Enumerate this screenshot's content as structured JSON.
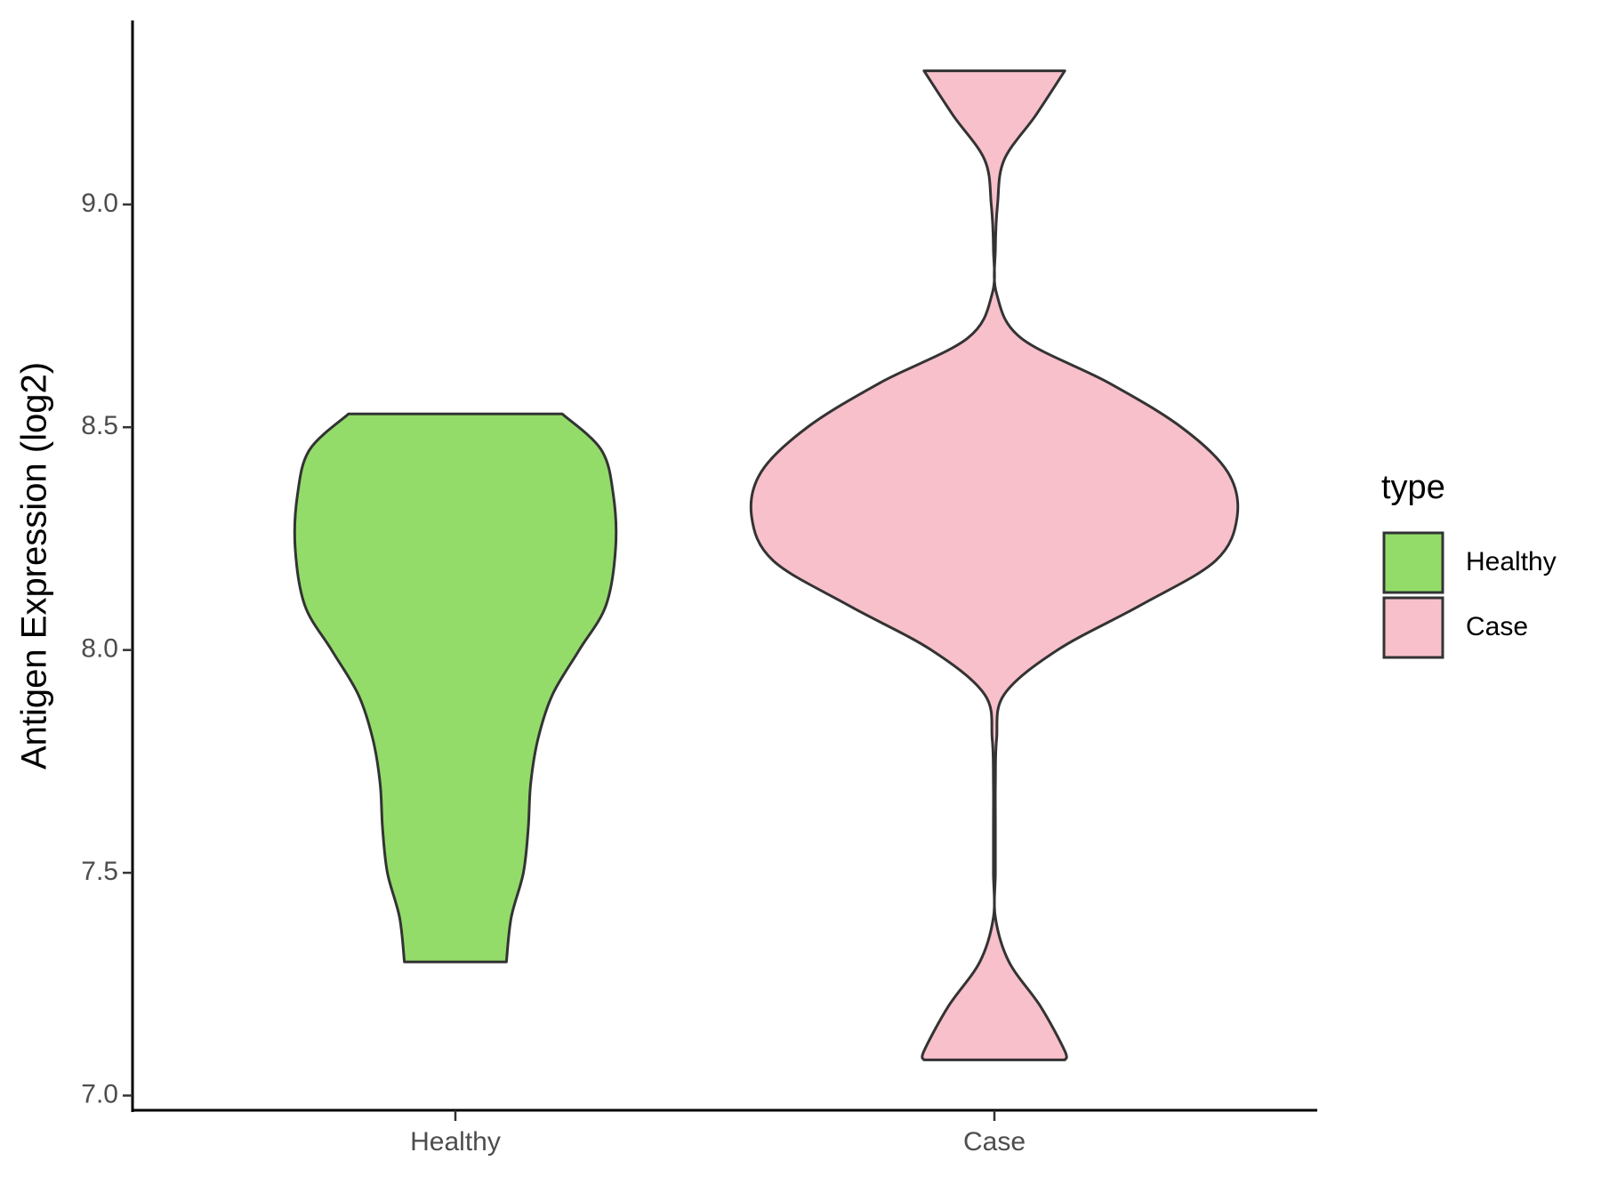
{
  "chart_data": {
    "type": "violin",
    "y_label": "Antigen Expression (log2)",
    "categories": [
      "Healthy",
      "Case"
    ],
    "legend_title": "type",
    "legend_position": "right",
    "ylim": [
      6.967,
      9.413
    ],
    "yticks": [
      {
        "value": 7.0,
        "label": "7.0"
      },
      {
        "value": 7.5,
        "label": "7.5"
      },
      {
        "value": 8.0,
        "label": "8.0"
      },
      {
        "value": 8.5,
        "label": "8.5"
      },
      {
        "value": 9.0,
        "label": "9.0"
      }
    ],
    "series": [
      {
        "name": "Healthy",
        "color": "#93dc6a",
        "y": [
          8.53,
          8.45,
          8.35,
          8.23,
          8.1,
          8.0,
          7.9,
          7.8,
          7.7,
          7.6,
          7.5,
          7.4,
          7.3
        ],
        "width": [
          0.44,
          0.6,
          0.65,
          0.66,
          0.62,
          0.51,
          0.4,
          0.34,
          0.31,
          0.3,
          0.28,
          0.23,
          0.21
        ]
      },
      {
        "name": "Case",
        "color": "#f7c0cb",
        "y": [
          9.3,
          9.2,
          9.1,
          9.0,
          8.9,
          8.8,
          8.7,
          8.6,
          8.5,
          8.4,
          8.3,
          8.2,
          8.1,
          8.0,
          7.9,
          7.8,
          7.7,
          7.6,
          7.5,
          7.4,
          7.3,
          7.2,
          7.1,
          7.08
        ],
        "width": [
          0.29,
          0.17,
          0.04,
          0.013,
          0.004,
          0.009,
          0.11,
          0.47,
          0.77,
          0.96,
          1.0,
          0.91,
          0.6,
          0.26,
          0.04,
          0.009,
          0.004,
          0.004,
          0.004,
          0.004,
          0.06,
          0.19,
          0.29,
          0.29
        ]
      }
    ]
  }
}
